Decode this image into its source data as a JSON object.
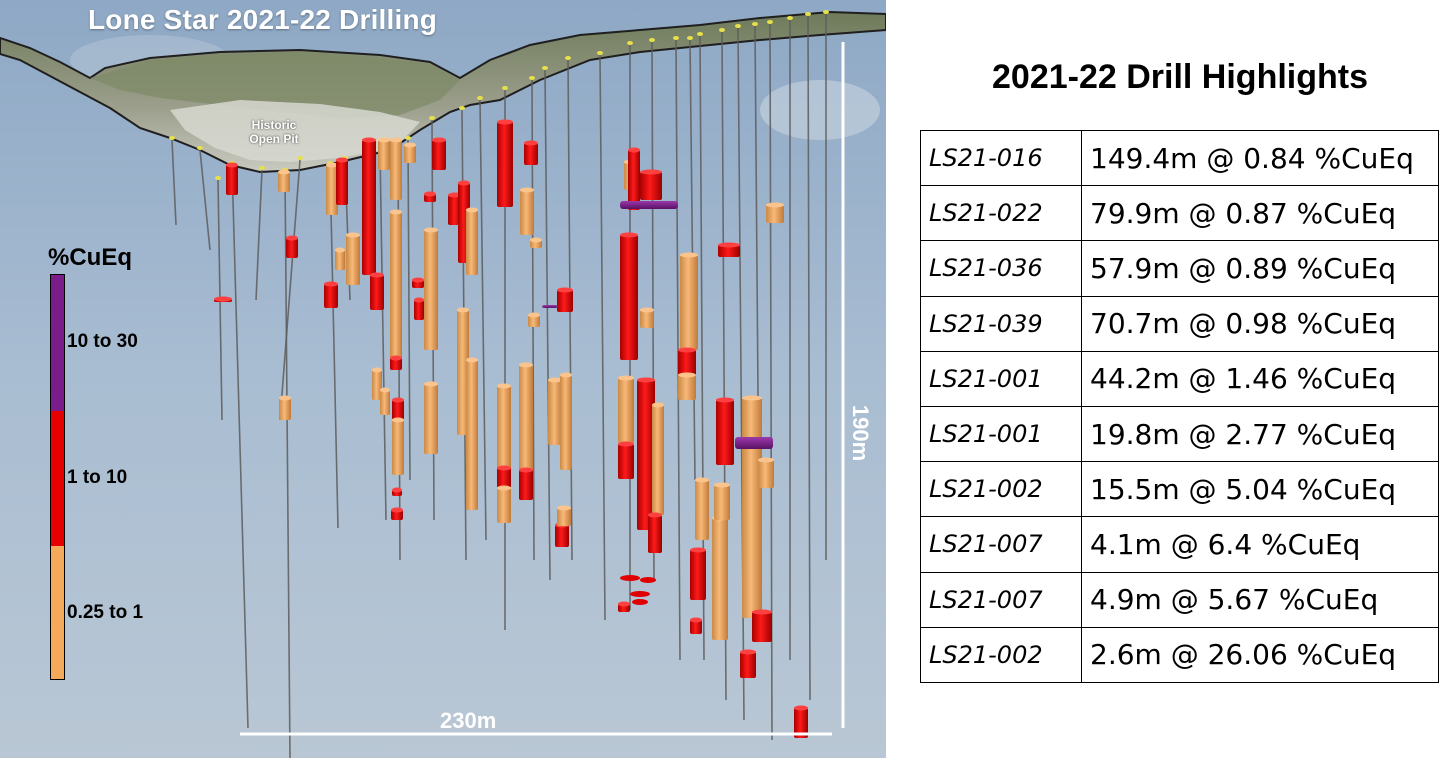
{
  "scene": {
    "title": "Lone Star 2021-22 Drilling",
    "pit_label_line1": "Historic",
    "pit_label_line2": "Open Pit",
    "scale_horizontal": "230m",
    "scale_vertical": "190m",
    "colors": {
      "grade_high": "#7a1c8a",
      "grade_mid": "#e60000",
      "grade_low": "#f5a95a",
      "sky_top": "#8fa9c6",
      "sky_bottom": "#b8c8d8",
      "drill_trace": "#5a5a5a"
    }
  },
  "legend": {
    "title": "%CuEq",
    "entries": [
      {
        "label": "10 to 30",
        "color": "#7a1c8a"
      },
      {
        "label": "1 to 10",
        "color": "#e60000"
      },
      {
        "label": "0.25 to 1",
        "color": "#f5a95a"
      }
    ]
  },
  "highlights": {
    "title": "2021-22 Drill Highlights",
    "rows": [
      {
        "hole": "LS21-016",
        "result": "149.4m @ 0.84 %CuEq"
      },
      {
        "hole": "LS21-022",
        "result": "79.9m @ 0.87 %CuEq"
      },
      {
        "hole": "LS21-036",
        "result": "57.9m @ 0.89 %CuEq"
      },
      {
        "hole": "LS21-039",
        "result": "70.7m @ 0.98 %CuEq"
      },
      {
        "hole": "LS21-001",
        "result": "44.2m @ 1.46 %CuEq"
      },
      {
        "hole": "LS21-001",
        "result": "19.8m @ 2.77 %CuEq"
      },
      {
        "hole": "LS21-002",
        "result": "15.5m @ 5.04 %CuEq"
      },
      {
        "hole": "LS21-007",
        "result": "4.1m @ 6.4 %CuEq"
      },
      {
        "hole": "LS21-007",
        "result": "4.9m @ 5.67 %CuEq"
      },
      {
        "hole": "LS21-002",
        "result": "2.6m @ 26.06 %CuEq"
      }
    ]
  }
}
